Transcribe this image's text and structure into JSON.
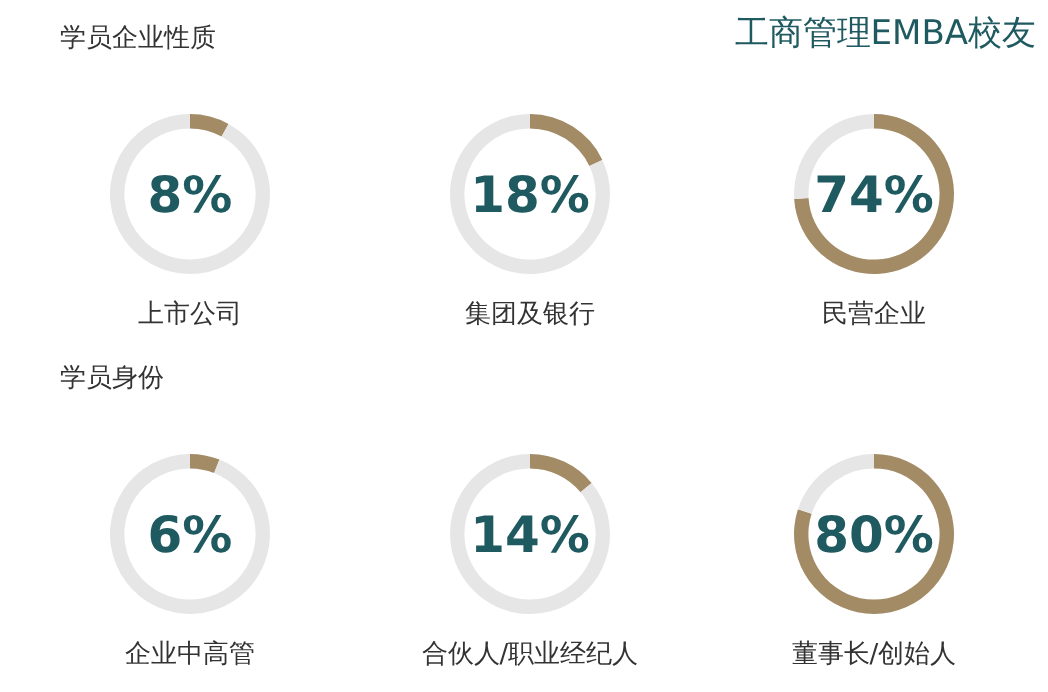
{
  "chart_data": [
    {
      "type": "other",
      "title": "工商管理EMBA校友"
    },
    {
      "type": "donut",
      "subtitle": "学员企业性质",
      "xlabel": "上市公司",
      "categories": [
        null,
        null
      ],
      "values": [
        8,
        92
      ],
      "colors": [
        "#a38b65",
        "#e6e6e6"
      ],
      "annotations": [
        "8%"
      ]
    },
    {
      "type": "donut",
      "xlabel": "集团及银行",
      "categories": [
        null,
        null
      ],
      "values": [
        18,
        82
      ],
      "colors": [
        "#a38b65",
        "#e6e6e6"
      ],
      "annotations": [
        "18%"
      ]
    },
    {
      "type": "donut",
      "xlabel": "民营企业",
      "categories": [
        null,
        null
      ],
      "values": [
        74,
        26
      ],
      "colors": [
        "#a38b65",
        "#e6e6e6"
      ],
      "annotations": [
        "74%"
      ]
    },
    {
      "type": "donut",
      "subtitle": "学员身份",
      "xlabel": "企业中高管",
      "categories": [
        null,
        null
      ],
      "values": [
        6,
        94
      ],
      "colors": [
        "#a38b65",
        "#e6e6e6"
      ],
      "annotations": [
        "6%"
      ]
    },
    {
      "type": "donut",
      "xlabel": "合伙人/职业经纪人",
      "categories": [
        null,
        null
      ],
      "values": [
        14,
        86
      ],
      "colors": [
        "#a38b65",
        "#e6e6e6"
      ],
      "annotations": [
        "14%"
      ]
    },
    {
      "type": "donut",
      "xlabel": "董事长/创始人",
      "categories": [
        null,
        null
      ],
      "values": [
        80,
        20
      ],
      "colors": [
        "#a38b65",
        "#e6e6e6"
      ],
      "annotations": [
        "80%"
      ]
    }
  ]
}
